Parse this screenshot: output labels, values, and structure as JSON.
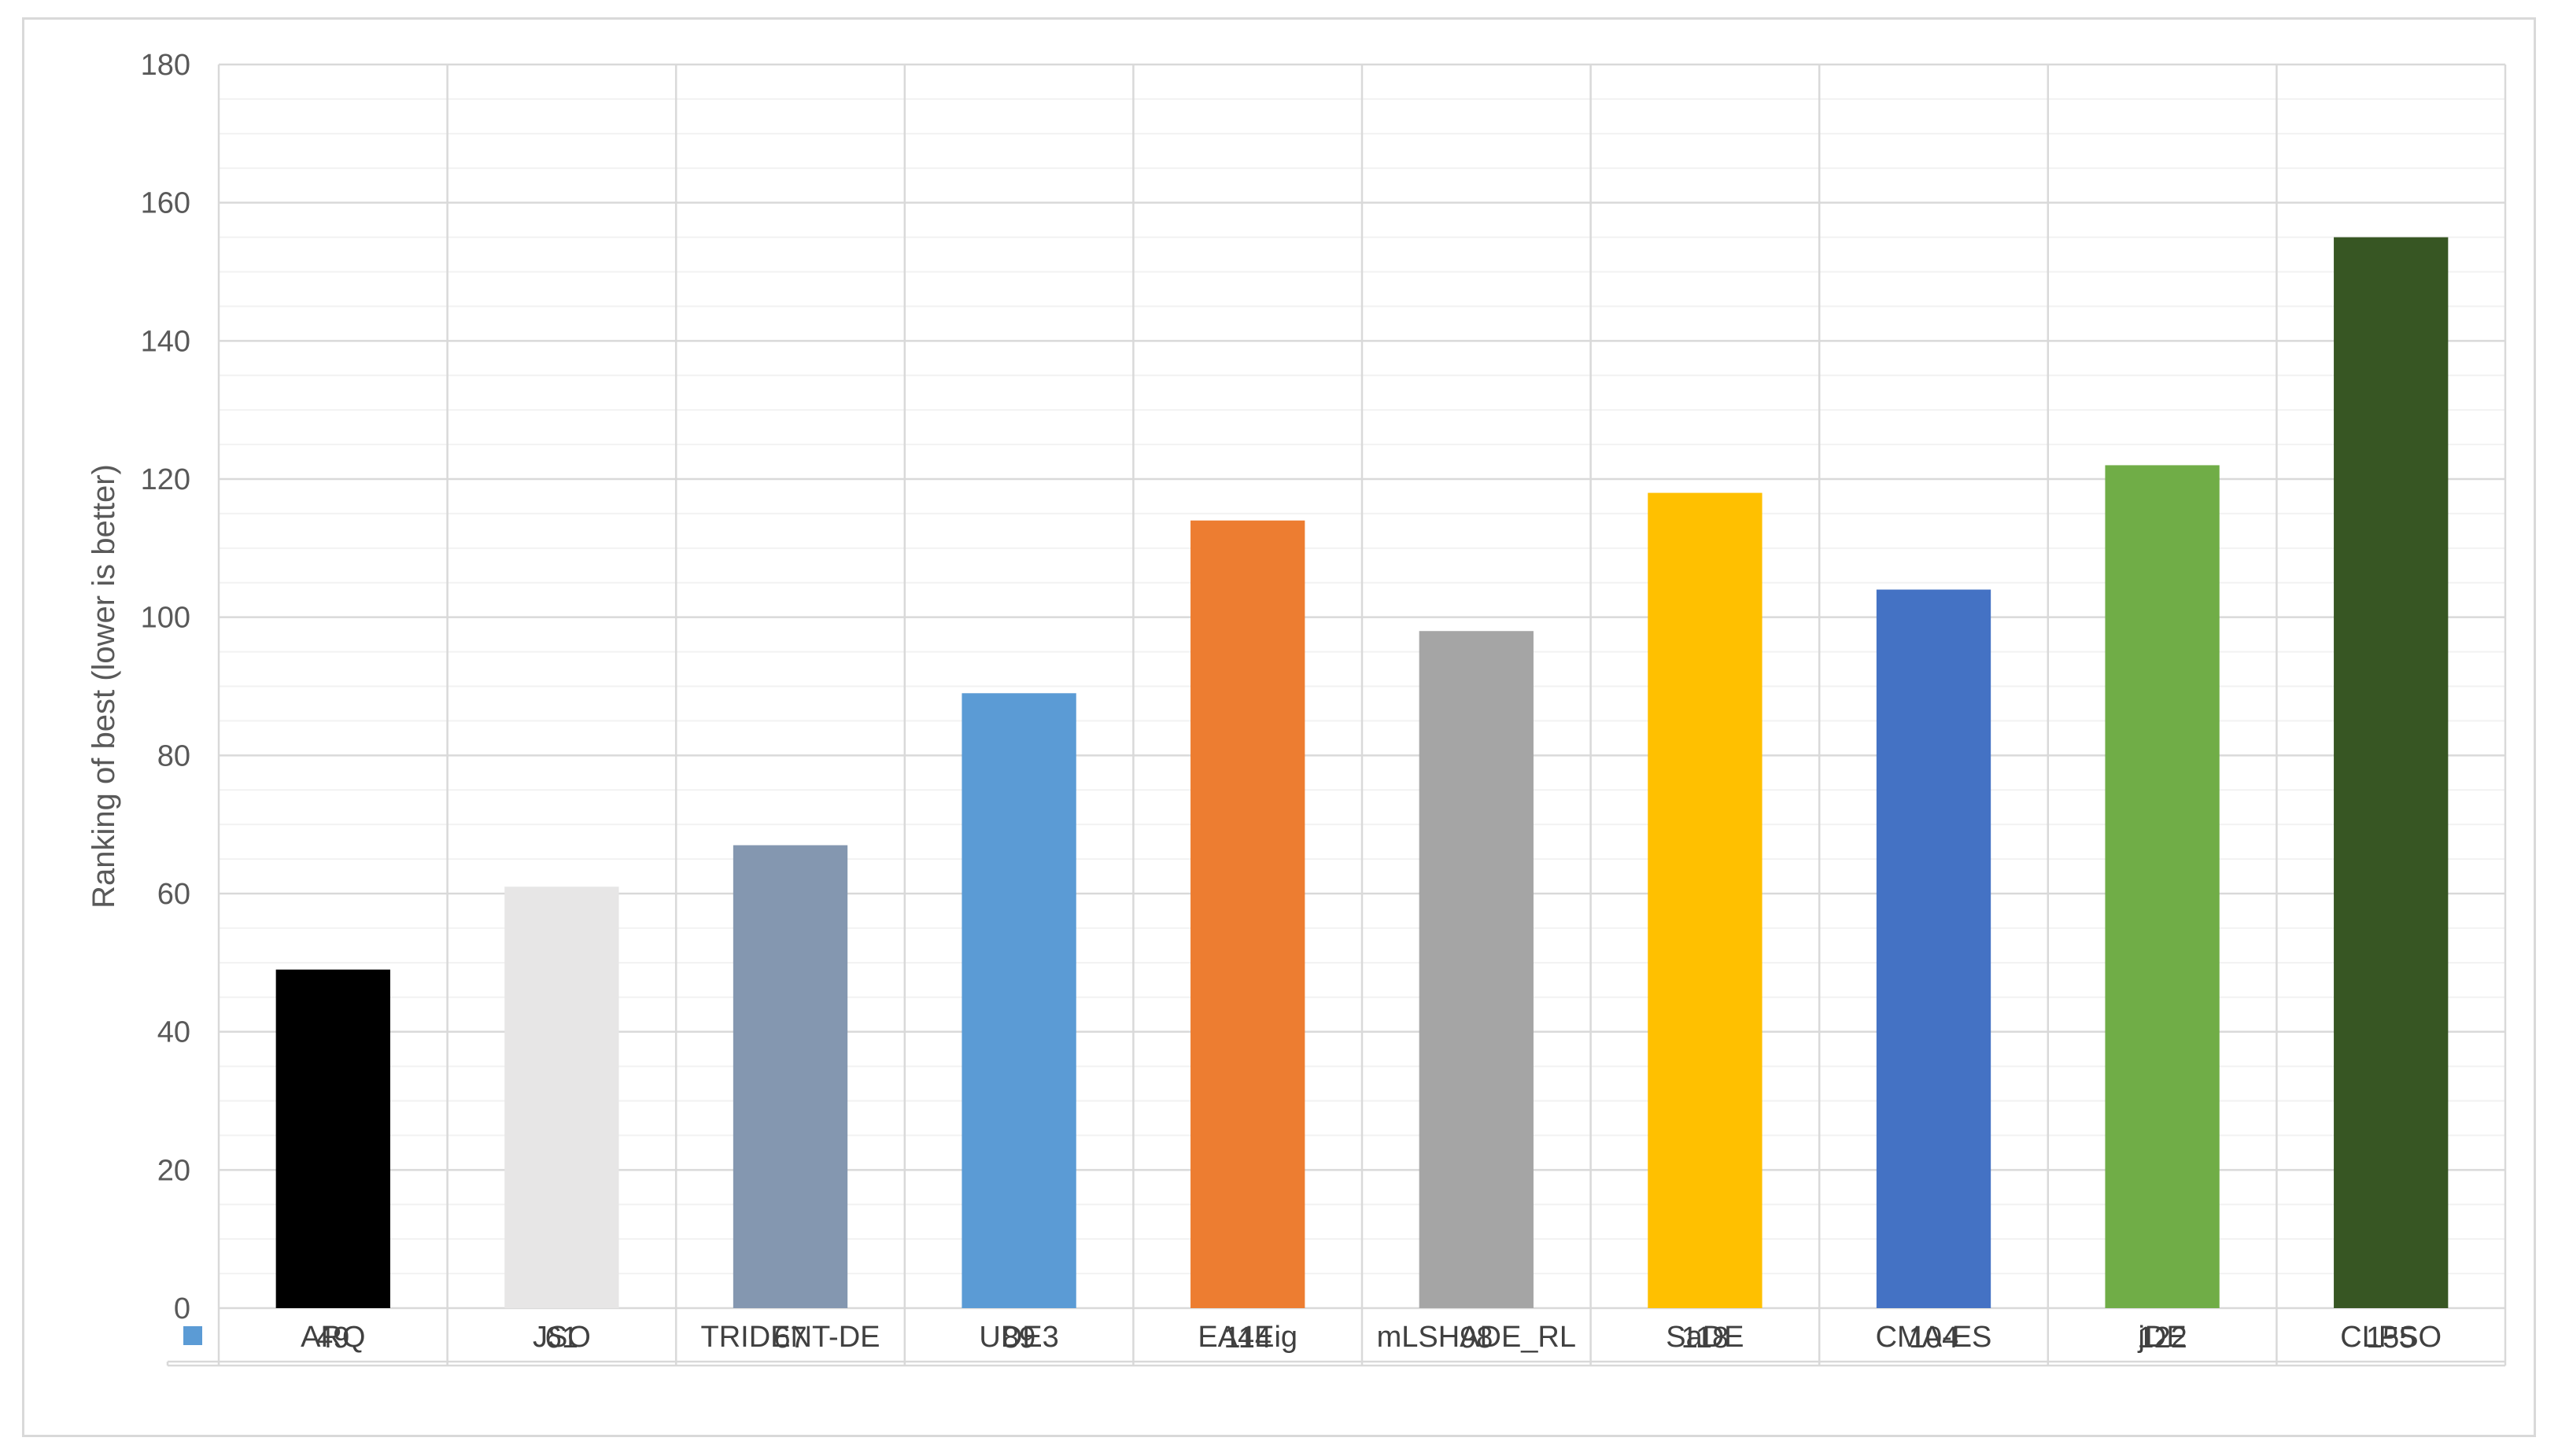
{
  "chart_data": {
    "type": "bar",
    "title": "",
    "xlabel": "",
    "ylabel": "Ranking of best (lower is better)",
    "ylim": [
      0,
      180
    ],
    "y_major_step": 20,
    "y_minor_step": 5,
    "grid": true,
    "legend_position": "data-table",
    "categories": [
      "ARQ",
      "JSO",
      "TRIDENT-DE",
      "UDE3",
      "EA4Eig",
      "mLSHADE_RL",
      "SaDE",
      "CMA-ES",
      "jDE",
      "CLPSO"
    ],
    "values": [
      49,
      61,
      67,
      89,
      114,
      98,
      118,
      104,
      122,
      155
    ],
    "value_labels": [
      "49",
      "61",
      "67",
      "89",
      "114",
      "98",
      "118",
      "104",
      "122",
      "155"
    ],
    "colors": [
      "#000000",
      "#e7e6e6",
      "#8497b0",
      "#5b9bd5",
      "#ed7d31",
      "#a5a5a5",
      "#ffc000",
      "#4472c4",
      "#70ad47",
      "#375623"
    ],
    "legend_key_color": "#5b9bd5"
  }
}
